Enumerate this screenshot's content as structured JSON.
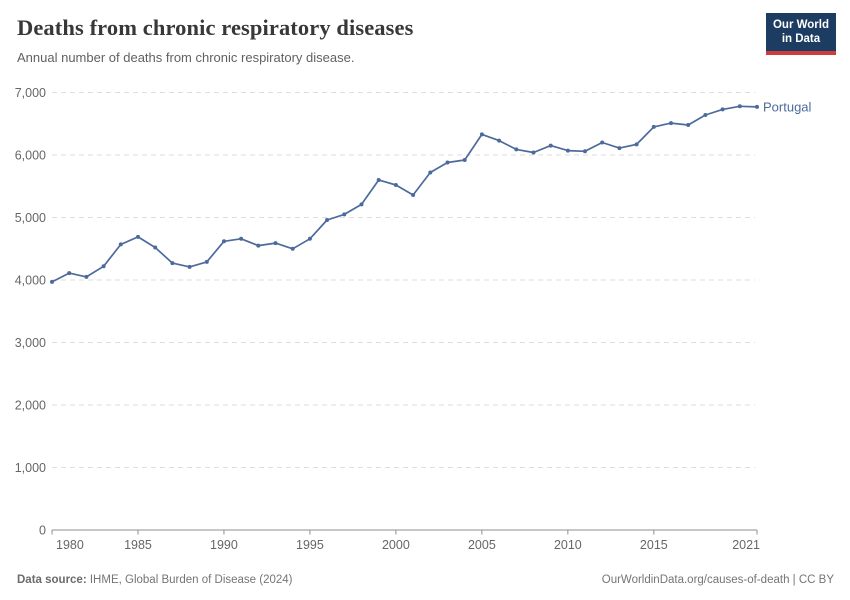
{
  "header": {
    "title": "Deaths from chronic respiratory diseases",
    "subtitle": "Annual number of deaths from chronic respiratory disease.",
    "logo": {
      "line1": "Our World",
      "line2": "in Data"
    }
  },
  "chart_data": {
    "type": "line",
    "title": "Deaths from chronic respiratory diseases",
    "xlabel": "",
    "ylabel": "",
    "xlim": [
      1980,
      2021
    ],
    "ylim": [
      0,
      7000
    ],
    "grid": "horizontal-dashed",
    "legend_position": "end-of-line-label",
    "x_ticks": [
      1980,
      1985,
      1990,
      1995,
      2000,
      2005,
      2010,
      2015,
      2021
    ],
    "y_ticks": [
      0,
      1000,
      2000,
      3000,
      4000,
      5000,
      6000,
      7000
    ],
    "y_tick_labels": [
      "0",
      "1,000",
      "2,000",
      "3,000",
      "4,000",
      "5,000",
      "6,000",
      "7,000"
    ],
    "series": [
      {
        "name": "Portugal",
        "color": "#4c6a9c",
        "x": [
          1980,
          1981,
          1982,
          1983,
          1984,
          1985,
          1986,
          1987,
          1988,
          1989,
          1990,
          1991,
          1992,
          1993,
          1994,
          1995,
          1996,
          1997,
          1998,
          1999,
          2000,
          2001,
          2002,
          2003,
          2004,
          2005,
          2006,
          2007,
          2008,
          2009,
          2010,
          2011,
          2012,
          2013,
          2014,
          2015,
          2016,
          2017,
          2018,
          2019,
          2020,
          2021
        ],
        "values": [
          3970,
          4110,
          4050,
          4220,
          4570,
          4690,
          4520,
          4270,
          4210,
          4290,
          4620,
          4660,
          4550,
          4590,
          4500,
          4660,
          4960,
          5050,
          5210,
          5600,
          5520,
          5360,
          5720,
          5880,
          5920,
          6330,
          6230,
          6090,
          6040,
          6150,
          6070,
          6060,
          6200,
          6110,
          6170,
          6450,
          6510,
          6480,
          6640,
          6730,
          6780,
          6770
        ]
      }
    ]
  },
  "footer": {
    "source_label": "Data source:",
    "source_text": " IHME, Global Burden of Disease (2024)",
    "credit": "OurWorldinData.org/causes-of-death | CC BY"
  },
  "colors": {
    "line": "#4c6a9c",
    "grid": "#dddddd",
    "axis": "#8f8f8f",
    "tick_label": "#666666",
    "series_label": "#4c6a9c"
  }
}
